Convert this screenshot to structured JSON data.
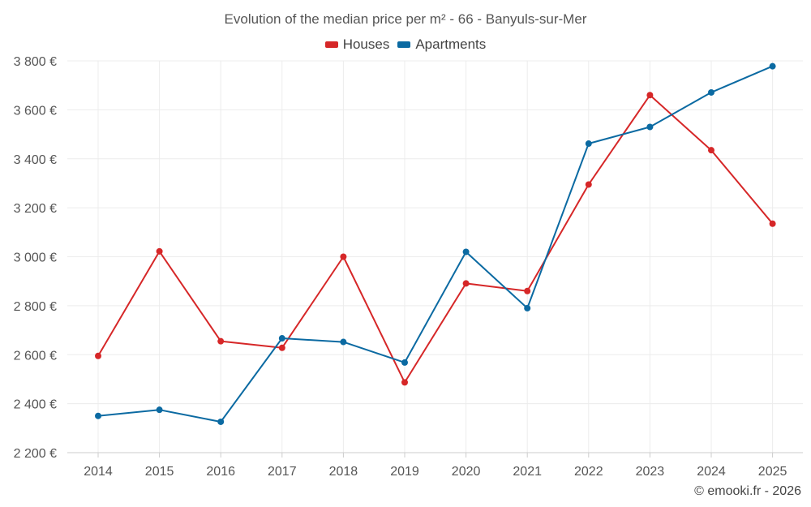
{
  "chart_data": {
    "type": "line",
    "title": "Evolution of the median price per m² - 66 - Banyuls-sur-Mer",
    "categories": [
      "2014",
      "2015",
      "2016",
      "2017",
      "2018",
      "2019",
      "2020",
      "2021",
      "2022",
      "2023",
      "2024",
      "2025"
    ],
    "series": [
      {
        "name": "Houses",
        "color": "#d62728",
        "values": [
          2595,
          3022,
          2655,
          2628,
          3000,
          2487,
          2891,
          2860,
          3295,
          3660,
          3435,
          3135
        ]
      },
      {
        "name": "Apartments",
        "color": "#0b6aa2",
        "values": [
          2350,
          2375,
          2326,
          2667,
          2652,
          2568,
          3020,
          2790,
          3462,
          3530,
          3671,
          3778
        ]
      }
    ],
    "ylim": [
      2200,
      3800
    ],
    "yticks": [
      2200,
      2400,
      2600,
      2800,
      3000,
      3200,
      3400,
      3600,
      3800
    ],
    "ytick_labels": [
      "2 200 €",
      "2 400 €",
      "2 600 €",
      "2 800 €",
      "3 000 €",
      "3 200 €",
      "3 400 €",
      "3 600 €",
      "3 800 €"
    ],
    "xlabel": "",
    "ylabel": "",
    "grid": true,
    "legend_position": "top-center"
  },
  "legend": {
    "houses_label": "Houses",
    "apartments_label": "Apartments"
  },
  "credit": "© emooki.fr - 2026"
}
